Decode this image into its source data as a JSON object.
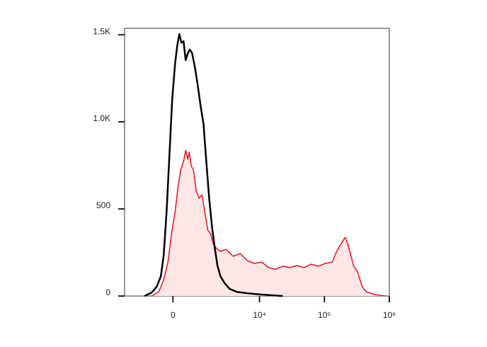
{
  "chart_data": {
    "type": "line",
    "xscale": "asinh",
    "xlim": [
      -2500,
      1000000
    ],
    "ylim": [
      0,
      1537
    ],
    "xticks": [
      0,
      {
        "value": 10000,
        "label": "10⁴"
      },
      {
        "value": 100000,
        "label": "10⁵"
      },
      {
        "value": 1000000,
        "label": "10⁶"
      }
    ],
    "yticks": [
      0,
      500,
      {
        "value": 1000,
        "label": "1.0K"
      },
      {
        "value": 1500,
        "label": "1.5K"
      }
    ],
    "series": [
      {
        "color": "#e8141e",
        "fill": "#fde6e6",
        "x": [
          -769,
          -487,
          -310,
          -165,
          -47,
          70,
          165,
          260,
          359,
          435,
          514,
          568,
          652,
          739,
          862,
          997,
          1136,
          1296,
          1464,
          1645,
          1841,
          2049,
          2416,
          2990,
          3883,
          5015,
          6466,
          8333,
          10740,
          13810,
          17770,
          22800,
          29380,
          37760,
          48540,
          62400,
          80260,
          103100,
          132600,
          154100,
          179200,
          208500,
          230400,
          254900,
          281800,
          327700,
          381300,
          443200,
          598900,
          872500
        ],
        "values": [
          0,
          24,
          93,
          195,
          358,
          480,
          622,
          724,
          772,
          837,
          785,
          825,
          744,
          724,
          602,
          561,
          581,
          480,
          378,
          358,
          297,
          276,
          256,
          268,
          228,
          244,
          203,
          187,
          195,
          163,
          154,
          171,
          163,
          175,
          163,
          183,
          171,
          187,
          195,
          256,
          297,
          337,
          297,
          236,
          175,
          134,
          53,
          24,
          8,
          0
        ]
      },
      {
        "color": "#000000",
        "x": [
          -1104,
          -769,
          -567,
          -409,
          -310,
          -212,
          -117,
          -23,
          70,
          141,
          212,
          285,
          359,
          435,
          514,
          595,
          681,
          801,
          927,
          1070,
          1218,
          1380,
          1551,
          1743,
          1941,
          2161,
          2416,
          2837,
          3405,
          4410,
          6466,
          10740,
          22800
        ],
        "values": [
          0,
          20,
          53,
          114,
          236,
          480,
          805,
          1130,
          1333,
          1435,
          1504,
          1455,
          1463,
          1354,
          1394,
          1415,
          1394,
          1313,
          1211,
          1089,
          988,
          764,
          561,
          398,
          276,
          175,
          114,
          73,
          41,
          24,
          16,
          8,
          0
        ]
      }
    ]
  }
}
